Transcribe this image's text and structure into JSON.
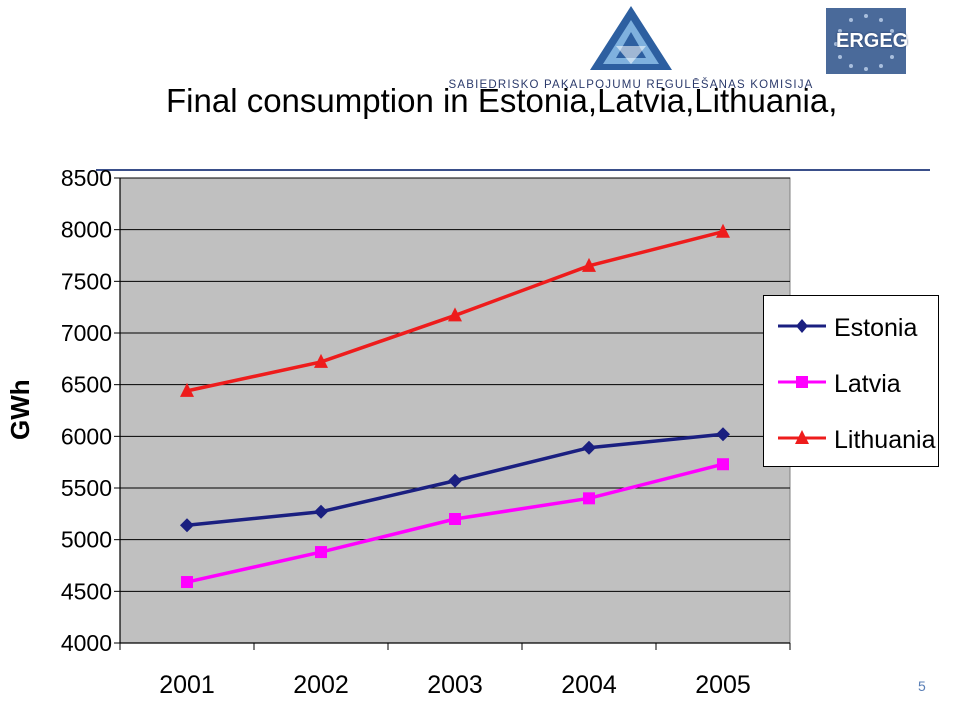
{
  "header": {
    "logo_text": "SABIEDRISKO PAKALPOJUMU REGULĒŠANAS KOMISIJA",
    "ergeg_logo_text": "ERGEG"
  },
  "slide": {
    "title": "Final consumption in Estonia,Latvia,Lithuania,",
    "page_number": "5"
  },
  "colors": {
    "plot_background": "#c0c0c0",
    "estonia": "#1a1f80",
    "latvia": "#ff00ff",
    "lithuania": "#ee1c1c",
    "rule": "#3a4f8a"
  },
  "chart_data": {
    "type": "line",
    "title": "Final consumption in Estonia,Latvia,Lithuania,",
    "xlabel": "",
    "ylabel": "GWh",
    "categories": [
      "2001",
      "2002",
      "2003",
      "2004",
      "2005"
    ],
    "ylim": [
      4000,
      8500
    ],
    "yticks": [
      "4000",
      "4500",
      "5000",
      "5500",
      "6000",
      "6500",
      "7000",
      "7500",
      "8000",
      "8500"
    ],
    "grid": true,
    "legend_position": "right",
    "series": [
      {
        "name": "Estonia",
        "marker": "diamond",
        "color": "#1a1f80",
        "values": [
          5140,
          5270,
          5570,
          5890,
          6020
        ]
      },
      {
        "name": "Latvia",
        "marker": "square",
        "color": "#ff00ff",
        "values": [
          4590,
          4880,
          5200,
          5400,
          5730
        ]
      },
      {
        "name": "Lithuania",
        "marker": "triangle",
        "color": "#ee1c1c",
        "values": [
          6440,
          6720,
          7170,
          7650,
          7980
        ]
      }
    ]
  }
}
